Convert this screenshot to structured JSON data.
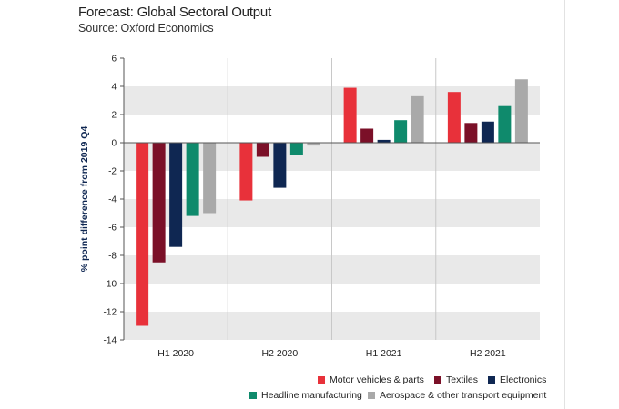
{
  "header": {
    "title": "Forecast: Global Sectoral Output",
    "subtitle": "Source: Oxford Economics"
  },
  "colors": {
    "motor": "#e8313a",
    "textiles": "#7b1028",
    "electronics": "#0f2752",
    "headline": "#0f8a6c",
    "aerospace": "#a9a9a9",
    "band": "#e9e9e9",
    "axis": "#555555"
  },
  "chart_data": {
    "type": "bar",
    "title": "",
    "xlabel": "",
    "ylabel": "% point difference from 2019 Q4",
    "ylim": [
      -14,
      6
    ],
    "yticks": [
      "6",
      "4",
      "2",
      "0",
      "-2",
      "-4",
      "-6",
      "-8",
      "-10",
      "-12",
      "-14"
    ],
    "categories": [
      "H1 2020",
      "H2 2020",
      "H1 2021",
      "H2 2021"
    ],
    "series": [
      {
        "name": "Motor vehicles & parts",
        "color": "#e8313a",
        "values": [
          -13.0,
          -4.1,
          3.9,
          3.6
        ]
      },
      {
        "name": "Textiles",
        "color": "#7b1028",
        "values": [
          -8.5,
          -1.0,
          1.0,
          1.4
        ]
      },
      {
        "name": "Electronics",
        "color": "#0f2752",
        "values": [
          -7.4,
          -3.2,
          0.2,
          1.5
        ]
      },
      {
        "name": "Headline manufacturing",
        "color": "#0f8a6c",
        "values": [
          -5.2,
          -0.9,
          1.6,
          2.6
        ]
      },
      {
        "name": "Aerospace & other transport equipment",
        "color": "#a9a9a9",
        "values": [
          -5.0,
          -0.2,
          3.3,
          4.5
        ]
      }
    ],
    "grid": "alternating horizontal bands",
    "legend_position": "bottom-right"
  }
}
